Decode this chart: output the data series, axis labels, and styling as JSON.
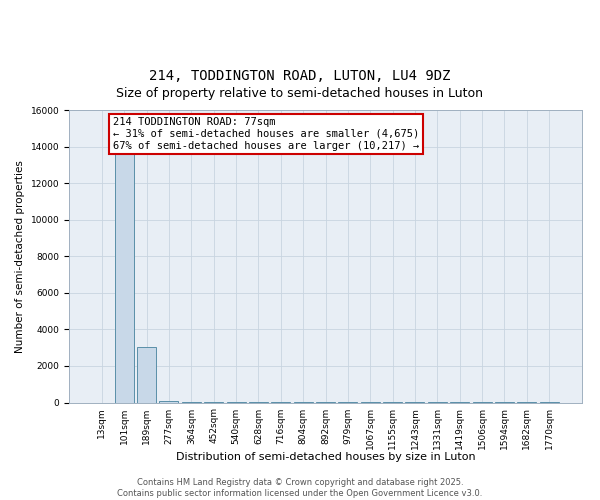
{
  "title_line1": "214, TODDINGTON ROAD, LUTON, LU4 9DZ",
  "title_line2": "Size of property relative to semi-detached houses in Luton",
  "xlabel": "Distribution of semi-detached houses by size in Luton",
  "ylabel": "Number of semi-detached properties",
  "categories": [
    "13sqm",
    "101sqm",
    "189sqm",
    "277sqm",
    "364sqm",
    "452sqm",
    "540sqm",
    "628sqm",
    "716sqm",
    "804sqm",
    "892sqm",
    "979sqm",
    "1067sqm",
    "1155sqm",
    "1243sqm",
    "1331sqm",
    "1419sqm",
    "1506sqm",
    "1594sqm",
    "1682sqm",
    "1770sqm"
  ],
  "values": [
    0,
    14200,
    3050,
    60,
    20,
    10,
    5,
    5,
    5,
    5,
    5,
    5,
    5,
    5,
    5,
    5,
    5,
    5,
    5,
    5,
    5
  ],
  "bar_color": "#c8d8e8",
  "bar_edge_color": "#5a8fa8",
  "ylim": [
    0,
    16000
  ],
  "yticks": [
    0,
    2000,
    4000,
    6000,
    8000,
    10000,
    12000,
    14000,
    16000
  ],
  "annotation_box_text": "214 TODDINGTON ROAD: 77sqm\n← 31% of semi-detached houses are smaller (4,675)\n67% of semi-detached houses are larger (10,217) →",
  "annotation_box_edgecolor": "#cc0000",
  "annotation_box_facecolor": "white",
  "grid_color": "#c8d4e0",
  "bg_color": "#e8eef5",
  "footer_text": "Contains HM Land Registry data © Crown copyright and database right 2025.\nContains public sector information licensed under the Open Government Licence v3.0.",
  "title_fontsize": 10,
  "subtitle_fontsize": 9,
  "tick_fontsize": 6.5,
  "ylabel_fontsize": 7.5,
  "xlabel_fontsize": 8,
  "annotation_fontsize": 7.5
}
